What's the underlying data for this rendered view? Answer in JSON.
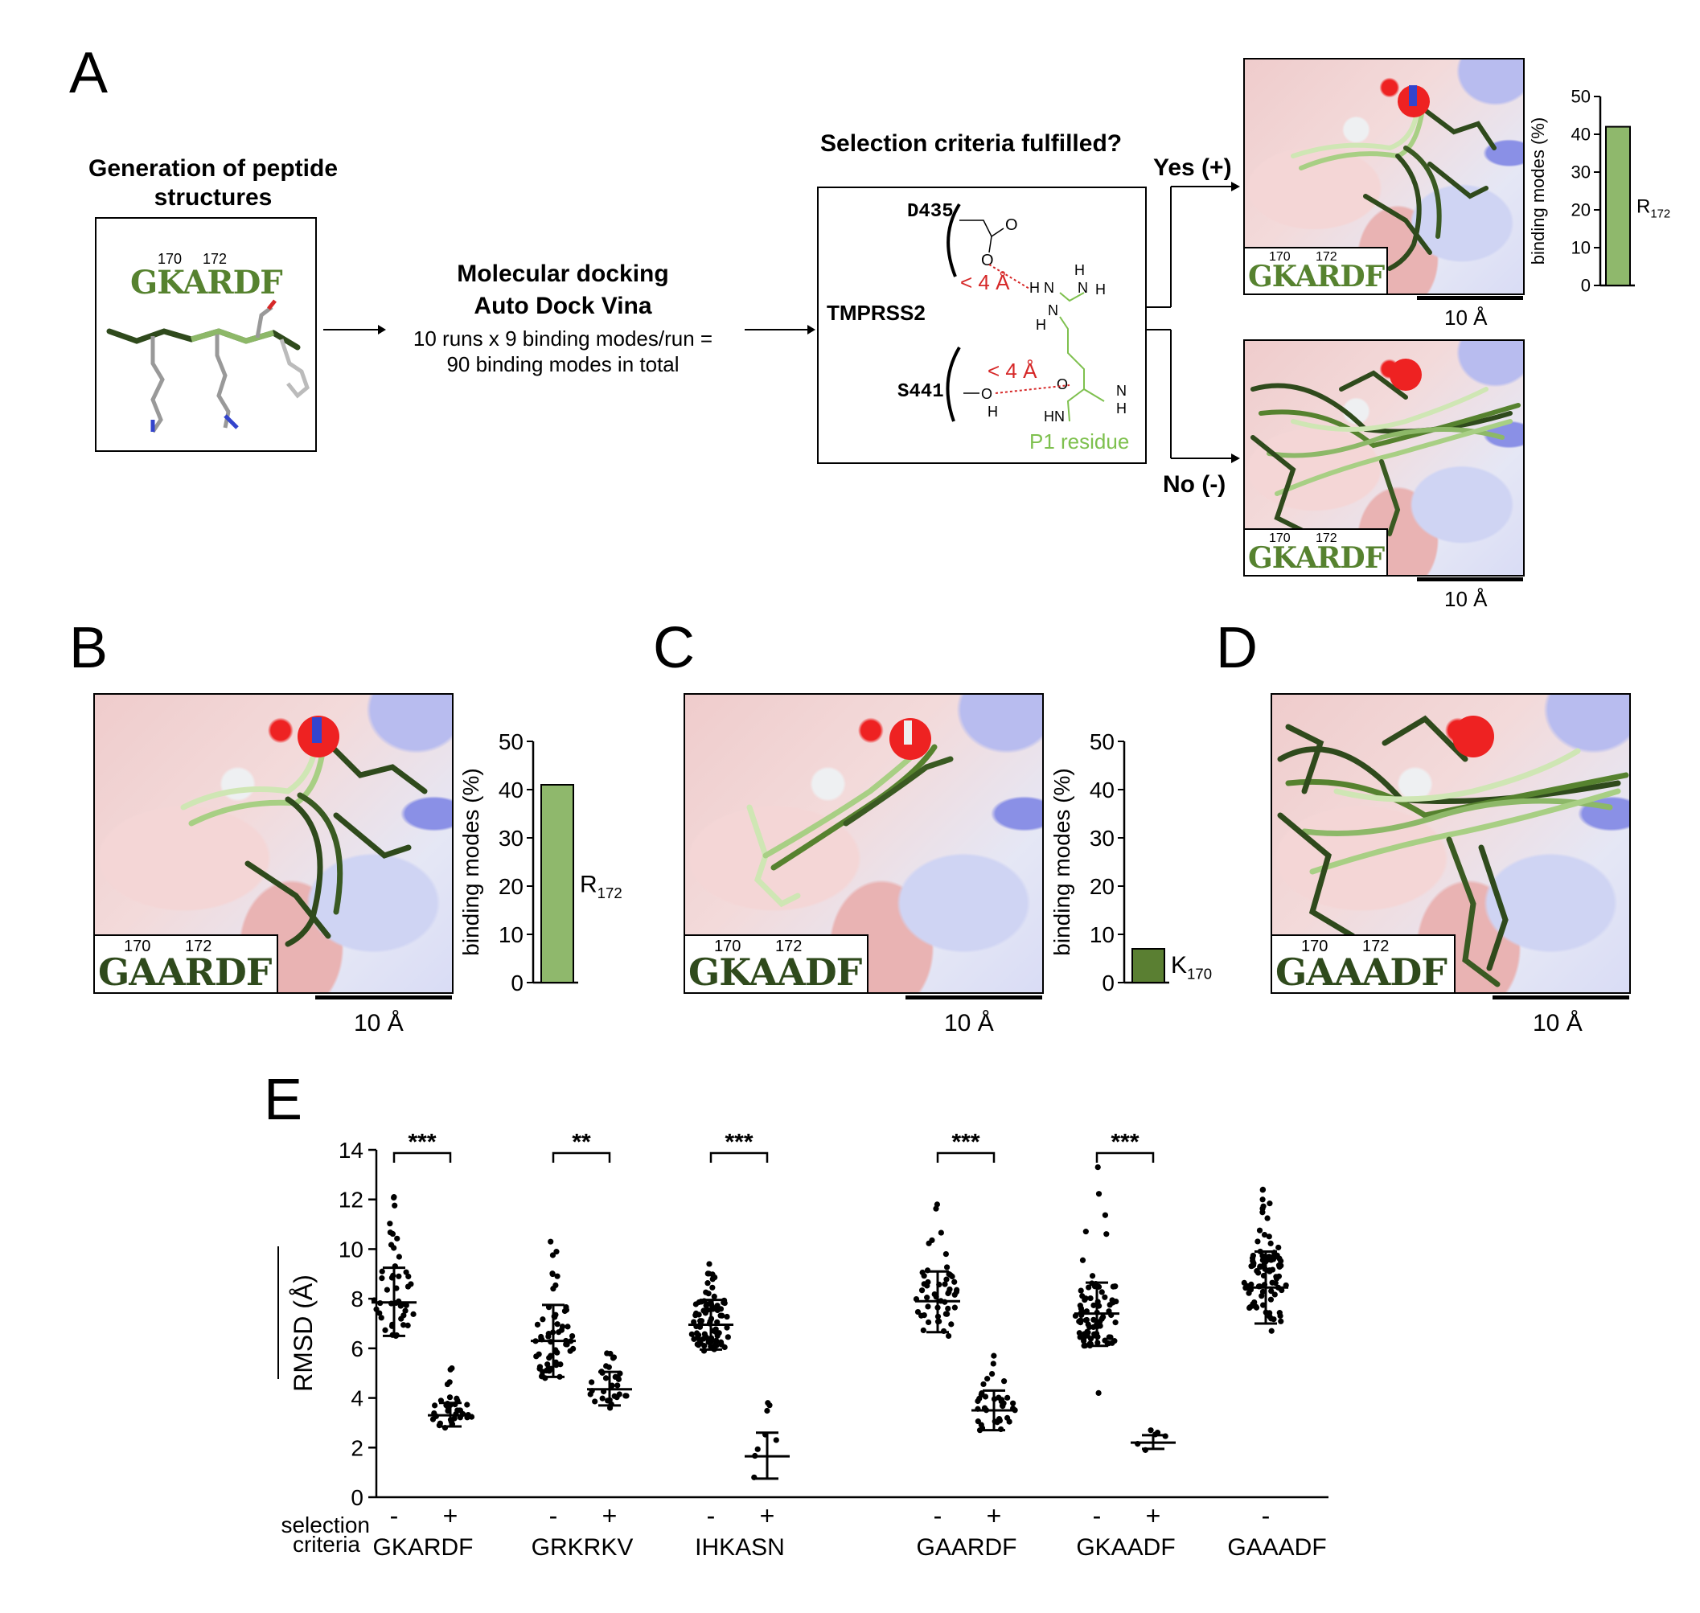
{
  "colors": {
    "dark_green": "#2f4a1c",
    "mid_green": "#56822f",
    "light_green": "#8db868",
    "pale_green": "#cfe6b4",
    "red": "#d62828",
    "bar_green": "#8fb86c",
    "bar_dark": "#5a7f32"
  },
  "panel_a": {
    "letter": "A",
    "generation_title": "Generation of peptide structures",
    "res_170": "170",
    "res_172": "172",
    "peptide": "GKARDF",
    "docking_title": "Molecular docking",
    "docking_subtitle": "Auto Dock Vina",
    "docking_line1": "10 runs x 9 binding modes/run =",
    "docking_line2": "90 binding modes in total",
    "criteria_title": "Selection criteria fulfilled?",
    "d435": "D435",
    "s441": "S441",
    "tmprss2": "TMPRSS2",
    "distance1": "< 4 Å",
    "distance2": "< 4 Å",
    "p1": "P1 residue",
    "yes": "Yes (+)",
    "no": "No (-)",
    "scale": "10 Å",
    "bar_ylabel": "binding modes (%)",
    "bar_label": "R",
    "bar_sub": "172",
    "bar_value": 42,
    "ticks": [
      "0",
      "10",
      "20",
      "30",
      "40",
      "50"
    ]
  },
  "panel_b": {
    "letter": "B",
    "peptide": "GAARDF",
    "res_170": "170",
    "res_172": "172",
    "scale": "10 Å",
    "bar_ylabel": "binding modes (%)",
    "bar_label": "R",
    "bar_sub": "172",
    "bar_value": 41,
    "ticks": [
      "0",
      "10",
      "20",
      "30",
      "40",
      "50"
    ]
  },
  "panel_c": {
    "letter": "C",
    "peptide": "GKAADF",
    "res_170": "170",
    "res_172": "172",
    "scale": "10 Å",
    "bar_ylabel": "binding modes (%)",
    "bar_label": "K",
    "bar_sub": "170",
    "bar_value": 7,
    "ticks": [
      "0",
      "10",
      "20",
      "30",
      "40",
      "50"
    ]
  },
  "panel_d": {
    "letter": "D",
    "peptide": "GAAADF",
    "res_170": "170",
    "res_172": "172",
    "scale": "10 Å"
  },
  "chart_data": {
    "type": "scatter",
    "letter": "E",
    "ylabel": "RMSD (Å)",
    "ylim": [
      0,
      14
    ],
    "yticks": [
      "0",
      "2",
      "4",
      "6",
      "8",
      "10",
      "12",
      "14"
    ],
    "selection_label_line1": "selection",
    "selection_label_line2": "criteria",
    "groups": [
      {
        "name": "GKARDF",
        "columns": [
          {
            "sign": "-",
            "mean": 7.85,
            "sd_low": 6.5,
            "sd_high": 9.25,
            "min": 6.5,
            "max": 12.1,
            "n": 45
          },
          {
            "sign": "+",
            "mean": 3.3,
            "sd_low": 2.85,
            "sd_high": 3.8,
            "min": 2.8,
            "max": 5.2,
            "n": 38
          }
        ],
        "sig": "***"
      },
      {
        "name": "GRKRKV",
        "columns": [
          {
            "sign": "-",
            "mean": 6.3,
            "sd_low": 4.85,
            "sd_high": 7.75,
            "min": 4.8,
            "max": 10.3,
            "n": 60
          },
          {
            "sign": "+",
            "mean": 4.35,
            "sd_low": 3.7,
            "sd_high": 5.05,
            "min": 3.6,
            "max": 5.8,
            "n": 30
          }
        ],
        "sig": "**"
      },
      {
        "name": "IHKASN",
        "columns": [
          {
            "sign": "-",
            "mean": 6.95,
            "sd_low": 5.95,
            "sd_high": 7.95,
            "min": 5.9,
            "max": 9.4,
            "n": 82
          },
          {
            "sign": "+",
            "mean": 1.65,
            "sd_low": 0.75,
            "sd_high": 2.6,
            "min": 0.8,
            "max": 3.8,
            "n": 8
          }
        ],
        "sig": "***"
      },
      {
        "name": "GAARDF",
        "columns": [
          {
            "sign": "-",
            "mean": 7.9,
            "sd_low": 6.65,
            "sd_high": 9.1,
            "min": 6.5,
            "max": 11.8,
            "n": 50
          },
          {
            "sign": "+",
            "mean": 3.5,
            "sd_low": 2.7,
            "sd_high": 4.3,
            "min": 2.7,
            "max": 5.7,
            "n": 37
          }
        ],
        "sig": "***"
      },
      {
        "name": "GKAADF",
        "columns": [
          {
            "sign": "-",
            "mean": 7.4,
            "sd_low": 6.1,
            "sd_high": 8.65,
            "min": 4.2,
            "max": 13.3,
            "n": 82
          },
          {
            "sign": "+",
            "mean": 2.2,
            "sd_low": 1.95,
            "sd_high": 2.5,
            "min": 1.9,
            "max": 2.7,
            "n": 6
          }
        ],
        "sig": "***"
      },
      {
        "name": "GAAADF",
        "columns": [
          {
            "sign": "-",
            "mean": 8.45,
            "sd_low": 7.0,
            "sd_high": 9.9,
            "min": 6.7,
            "max": 12.4,
            "n": 90
          }
        ],
        "sig": ""
      }
    ]
  }
}
